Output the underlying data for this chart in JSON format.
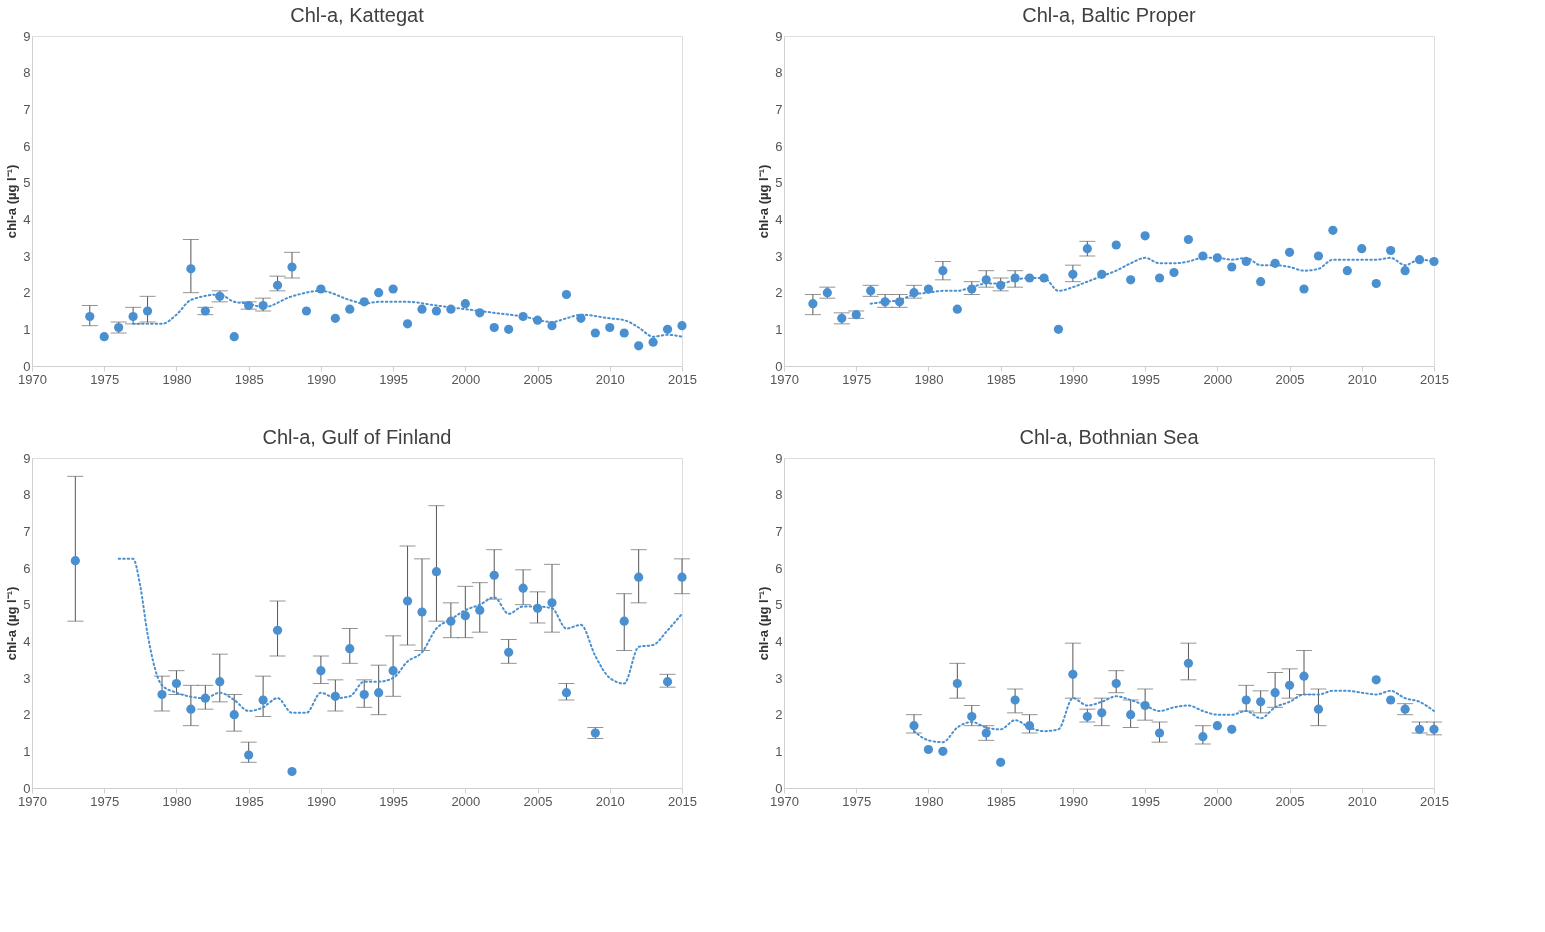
{
  "chart_data": [
    {
      "type": "scatter",
      "title": "Chl-a, Kattegat",
      "ylabel": "chl-a (µg l⁻¹)",
      "xlim": [
        1970,
        2015
      ],
      "xticks": [
        1970,
        1975,
        1980,
        1985,
        1990,
        1995,
        2000,
        2005,
        2010,
        2015
      ],
      "ylim": [
        0,
        9
      ],
      "yticks": [
        0,
        1,
        2,
        3,
        4,
        5,
        6,
        7,
        8,
        9
      ],
      "grid": false,
      "series": [
        {
          "type": "scatter",
          "marker": "circle",
          "color": "#4a90d0",
          "x": [
            1974,
            1975,
            1976,
            1977,
            1978,
            1981,
            1982,
            1983,
            1984,
            1985,
            1986,
            1987,
            1988,
            1989,
            1990,
            1991,
            1992,
            1993,
            1994,
            1995,
            1996,
            1997,
            1998,
            1999,
            2000,
            2001,
            2002,
            2003,
            2004,
            2005,
            2006,
            2007,
            2008,
            2009,
            2010,
            2011,
            2012,
            2013,
            2014,
            2015
          ],
          "values": [
            1.35,
            0.8,
            1.05,
            1.35,
            1.5,
            2.65,
            1.5,
            1.9,
            0.8,
            1.65,
            1.65,
            2.2,
            2.7,
            1.5,
            2.1,
            1.3,
            1.55,
            1.75,
            2.0,
            2.1,
            1.15,
            1.55,
            1.5,
            1.55,
            1.7,
            1.45,
            1.05,
            1.0,
            1.35,
            1.25,
            1.1,
            1.95,
            1.3,
            0.9,
            1.05,
            0.9,
            0.55,
            0.65,
            1.0,
            1.1
          ],
          "errors": [
            [
              1.1,
              1.65
            ],
            null,
            [
              0.9,
              1.2
            ],
            [
              1.15,
              1.6
            ],
            [
              1.2,
              1.9
            ],
            [
              2.0,
              3.45
            ],
            [
              1.4,
              1.6
            ],
            [
              1.75,
              2.05
            ],
            null,
            [
              1.55,
              1.75
            ],
            [
              1.5,
              1.85
            ],
            [
              2.05,
              2.45
            ],
            [
              2.4,
              3.1
            ],
            null,
            null,
            null,
            null,
            null,
            null,
            null,
            null,
            null,
            null,
            null,
            null,
            null,
            null,
            null,
            null,
            null,
            null,
            null,
            null,
            null,
            null,
            null,
            null,
            null,
            null,
            null
          ]
        },
        {
          "type": "line",
          "line_style": "dotted",
          "color": "#4a90d0",
          "x": [
            1977,
            1979,
            1980,
            1981,
            1983,
            1984,
            1985,
            1986,
            1988,
            1990,
            1992,
            1993,
            1994,
            1996,
            1998,
            2000,
            2002,
            2004,
            2006,
            2007,
            2008,
            2010,
            2011,
            2012,
            2013,
            2014,
            2015
          ],
          "values": [
            1.15,
            1.15,
            1.4,
            1.8,
            1.95,
            1.75,
            1.7,
            1.6,
            1.9,
            2.05,
            1.8,
            1.7,
            1.75,
            1.75,
            1.65,
            1.55,
            1.45,
            1.35,
            1.2,
            1.3,
            1.4,
            1.3,
            1.25,
            1.05,
            0.8,
            0.85,
            0.8
          ]
        }
      ]
    },
    {
      "type": "scatter",
      "title": "Chl-a, Baltic Proper",
      "ylabel": "chl-a (µg l⁻¹)",
      "xlim": [
        1970,
        2015
      ],
      "xticks": [
        1970,
        1975,
        1980,
        1985,
        1990,
        1995,
        2000,
        2005,
        2010,
        2015
      ],
      "ylim": [
        0,
        9
      ],
      "yticks": [
        0,
        1,
        2,
        3,
        4,
        5,
        6,
        7,
        8,
        9
      ],
      "grid": false,
      "series": [
        {
          "type": "scatter",
          "marker": "circle",
          "color": "#4a90d0",
          "x": [
            1972,
            1973,
            1974,
            1975,
            1976,
            1977,
            1978,
            1979,
            1980,
            1981,
            1982,
            1983,
            1984,
            1985,
            1986,
            1987,
            1988,
            1989,
            1990,
            1991,
            1992,
            1993,
            1994,
            1995,
            1996,
            1997,
            1998,
            1999,
            2000,
            2001,
            2002,
            2003,
            2004,
            2005,
            2006,
            2007,
            2008,
            2009,
            2010,
            2011,
            2012,
            2013,
            2014,
            2015
          ],
          "values": [
            1.7,
            2.0,
            1.3,
            1.4,
            2.05,
            1.75,
            1.75,
            2.0,
            2.1,
            2.6,
            1.55,
            2.1,
            2.35,
            2.2,
            2.4,
            2.4,
            2.4,
            1.0,
            2.5,
            3.2,
            2.5,
            3.3,
            2.35,
            3.55,
            2.4,
            2.55,
            3.45,
            3.0,
            2.95,
            2.7,
            2.85,
            2.3,
            2.8,
            3.1,
            2.1,
            3.0,
            3.7,
            2.6,
            3.2,
            2.25,
            3.15,
            2.6,
            2.9,
            2.85
          ],
          "errors": [
            [
              1.4,
              1.95
            ],
            [
              1.85,
              2.15
            ],
            [
              1.15,
              1.45
            ],
            [
              1.3,
              1.5
            ],
            [
              1.9,
              2.2
            ],
            [
              1.6,
              1.95
            ],
            [
              1.6,
              1.95
            ],
            [
              1.85,
              2.2
            ],
            null,
            [
              2.35,
              2.85
            ],
            null,
            [
              1.95,
              2.3
            ],
            [
              2.15,
              2.6
            ],
            [
              2.05,
              2.4
            ],
            [
              2.15,
              2.6
            ],
            null,
            null,
            null,
            [
              2.3,
              2.75
            ],
            [
              3.0,
              3.4
            ],
            null,
            null,
            null,
            null,
            null,
            null,
            null,
            null,
            null,
            null,
            null,
            null,
            null,
            null,
            null,
            null,
            null,
            null,
            null,
            null,
            null,
            null,
            null,
            null
          ]
        },
        {
          "type": "line",
          "line_style": "dotted",
          "color": "#4a90d0",
          "x": [
            1976,
            1977,
            1978,
            1979,
            1980,
            1981,
            1982,
            1983,
            1984,
            1985,
            1986,
            1987,
            1988,
            1989,
            1990,
            1991,
            1992,
            1993,
            1994,
            1995,
            1996,
            1997,
            1998,
            1999,
            2000,
            2001,
            2002,
            2003,
            2004,
            2005,
            2006,
            2007,
            2008,
            2009,
            2010,
            2011,
            2012,
            2013,
            2014,
            2015
          ],
          "values": [
            1.7,
            1.75,
            1.8,
            1.95,
            2.0,
            2.05,
            2.05,
            2.15,
            2.25,
            2.25,
            2.35,
            2.4,
            2.4,
            2.05,
            2.15,
            2.3,
            2.45,
            2.6,
            2.8,
            2.95,
            2.8,
            2.8,
            2.85,
            2.95,
            2.95,
            2.9,
            2.95,
            2.75,
            2.75,
            2.7,
            2.6,
            2.65,
            2.9,
            2.9,
            2.9,
            2.9,
            2.95,
            2.75,
            2.9,
            2.85
          ]
        }
      ]
    },
    {
      "type": "scatter",
      "title": "Chl-a, Gulf of Finland",
      "ylabel": "chl-a (µg l⁻¹)",
      "xlim": [
        1970,
        2015
      ],
      "xticks": [
        1970,
        1975,
        1980,
        1985,
        1990,
        1995,
        2000,
        2005,
        2010,
        2015
      ],
      "ylim": [
        0,
        9
      ],
      "yticks": [
        0,
        1,
        2,
        3,
        4,
        5,
        6,
        7,
        8,
        9
      ],
      "grid": false,
      "series": [
        {
          "type": "scatter",
          "marker": "circle",
          "color": "#4a90d0",
          "x": [
            1973,
            1979,
            1980,
            1981,
            1982,
            1983,
            1984,
            1985,
            1986,
            1987,
            1988,
            1990,
            1991,
            1992,
            1993,
            1994,
            1995,
            1996,
            1997,
            1998,
            1999,
            2000,
            2001,
            2002,
            2003,
            2004,
            2005,
            2006,
            2007,
            2009,
            2011,
            2012,
            2014,
            2015
          ],
          "values": [
            6.2,
            2.55,
            2.85,
            2.15,
            2.45,
            2.9,
            2.0,
            0.9,
            2.4,
            4.3,
            0.45,
            3.2,
            2.5,
            3.8,
            2.55,
            2.6,
            3.2,
            5.1,
            4.8,
            5.9,
            4.55,
            4.7,
            4.85,
            5.8,
            3.7,
            5.45,
            4.9,
            5.05,
            2.6,
            1.5,
            4.55,
            5.75,
            2.9,
            5.75
          ],
          "errors": [
            [
              4.55,
              8.5
            ],
            [
              2.1,
              3.05
            ],
            [
              2.55,
              3.2
            ],
            [
              1.7,
              2.8
            ],
            [
              2.15,
              2.8
            ],
            [
              2.35,
              3.65
            ],
            [
              1.55,
              2.55
            ],
            [
              0.7,
              1.25
            ],
            [
              1.95,
              3.05
            ],
            [
              3.6,
              5.1
            ],
            null,
            [
              2.85,
              3.6
            ],
            [
              2.1,
              2.95
            ],
            [
              3.4,
              4.35
            ],
            [
              2.2,
              2.95
            ],
            [
              2.0,
              3.35
            ],
            [
              2.5,
              4.15
            ],
            [
              3.9,
              6.6
            ],
            [
              3.75,
              6.25
            ],
            [
              4.55,
              7.7
            ],
            [
              4.1,
              5.05
            ],
            [
              4.1,
              5.5
            ],
            [
              4.25,
              5.6
            ],
            [
              5.15,
              6.5
            ],
            [
              3.4,
              4.05
            ],
            [
              5.0,
              5.95
            ],
            [
              4.5,
              5.35
            ],
            [
              4.25,
              6.1
            ],
            [
              2.4,
              2.85
            ],
            [
              1.35,
              1.65
            ],
            [
              3.75,
              5.3
            ],
            [
              5.05,
              6.5
            ],
            [
              2.75,
              3.1
            ],
            [
              5.3,
              6.25
            ]
          ]
        },
        {
          "type": "line",
          "line_style": "dotted",
          "color": "#4a90d0",
          "x": [
            1976,
            1977,
            1977.5,
            1978,
            1979,
            1980,
            1982,
            1983,
            1984,
            1985,
            1986,
            1987,
            1988,
            1989,
            1990,
            1991,
            1992,
            1993,
            1994,
            1995,
            1996,
            1997,
            1998,
            1999,
            2000,
            2001,
            2002,
            2003,
            2004,
            2005,
            2006,
            2007,
            2008,
            2009,
            2010,
            2011,
            2012,
            2013,
            2014,
            2015
          ],
          "values": [
            6.25,
            6.25,
            5.5,
            4.2,
            2.8,
            2.6,
            2.45,
            2.6,
            2.4,
            2.1,
            2.2,
            2.45,
            2.05,
            2.05,
            2.6,
            2.45,
            2.5,
            2.9,
            2.9,
            3.0,
            3.45,
            3.7,
            4.35,
            4.6,
            4.85,
            5.0,
            5.2,
            4.75,
            4.95,
            4.95,
            4.9,
            4.35,
            4.45,
            3.6,
            3.0,
            2.85,
            3.85,
            3.9,
            4.3,
            4.75
          ]
        }
      ]
    },
    {
      "type": "scatter",
      "title": "Chl-a, Bothnian Sea",
      "ylabel": "chl-a (µg l⁻¹)",
      "xlim": [
        1970,
        2015
      ],
      "xticks": [
        1970,
        1975,
        1980,
        1985,
        1990,
        1995,
        2000,
        2005,
        2010,
        2015
      ],
      "ylim": [
        0,
        9
      ],
      "yticks": [
        0,
        1,
        2,
        3,
        4,
        5,
        6,
        7,
        8,
        9
      ],
      "grid": false,
      "series": [
        {
          "type": "scatter",
          "marker": "circle",
          "color": "#4a90d0",
          "x": [
            1979,
            1980,
            1981,
            1982,
            1983,
            1984,
            1985,
            1986,
            1987,
            1990,
            1991,
            1992,
            1993,
            1994,
            1995,
            1996,
            1998,
            1999,
            2000,
            2001,
            2002,
            2003,
            2004,
            2005,
            2006,
            2007,
            2011,
            2012,
            2013,
            2014,
            2015
          ],
          "values": [
            1.7,
            1.05,
            1.0,
            2.85,
            1.95,
            1.5,
            0.7,
            2.4,
            1.7,
            3.1,
            1.95,
            2.05,
            2.85,
            2.0,
            2.25,
            1.5,
            3.4,
            1.4,
            1.7,
            1.6,
            2.4,
            2.35,
            2.6,
            2.8,
            3.05,
            2.15,
            2.95,
            2.4,
            2.15,
            1.6,
            1.6
          ],
          "errors": [
            [
              1.5,
              2.0
            ],
            null,
            null,
            [
              2.45,
              3.4
            ],
            [
              1.7,
              2.25
            ],
            [
              1.3,
              1.7
            ],
            null,
            [
              2.05,
              2.7
            ],
            [
              1.5,
              2.0
            ],
            [
              2.45,
              3.95
            ],
            [
              1.8,
              2.15
            ],
            [
              1.7,
              2.45
            ],
            [
              2.6,
              3.2
            ],
            [
              1.65,
              2.4
            ],
            [
              1.85,
              2.7
            ],
            [
              1.25,
              1.8
            ],
            [
              2.95,
              3.95
            ],
            [
              1.2,
              1.7
            ],
            null,
            null,
            [
              2.1,
              2.8
            ],
            [
              2.05,
              2.65
            ],
            [
              2.2,
              3.15
            ],
            [
              2.45,
              3.25
            ],
            [
              2.55,
              3.75
            ],
            [
              1.7,
              2.7
            ],
            null,
            null,
            [
              2.0,
              2.3
            ],
            [
              1.5,
              1.8
            ],
            [
              1.45,
              1.8
            ]
          ]
        },
        {
          "type": "line",
          "line_style": "dotted",
          "color": "#4a90d0",
          "x": [
            1979,
            1980,
            1981,
            1982,
            1983,
            1984,
            1985,
            1986,
            1987,
            1988,
            1989,
            1990,
            1991,
            1992,
            1993,
            1994,
            1995,
            1996,
            1997,
            1998,
            1999,
            2000,
            2001,
            2002,
            2003,
            2004,
            2005,
            2006,
            2007,
            2008,
            2009,
            2010,
            2011,
            2012,
            2013,
            2014,
            2015
          ],
          "values": [
            1.55,
            1.3,
            1.25,
            1.65,
            1.8,
            1.65,
            1.6,
            1.85,
            1.65,
            1.55,
            1.6,
            2.45,
            2.25,
            2.35,
            2.5,
            2.4,
            2.25,
            2.1,
            2.2,
            2.25,
            2.1,
            2.0,
            2.0,
            2.1,
            1.9,
            2.2,
            2.35,
            2.55,
            2.55,
            2.65,
            2.65,
            2.6,
            2.55,
            2.65,
            2.45,
            2.35,
            2.1
          ]
        }
      ]
    }
  ]
}
